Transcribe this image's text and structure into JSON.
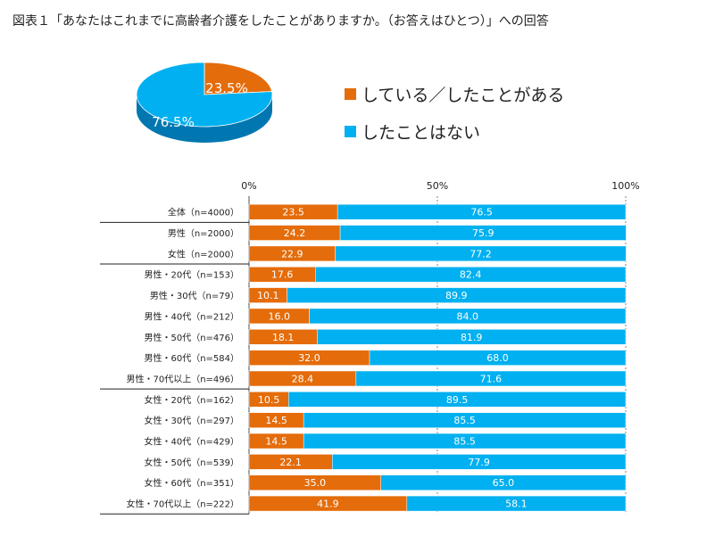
{
  "title": "図表１「あなたはこれまでに高齢者介護をしたことがありますか。（お答えはひとつ）」への回答",
  "colors": {
    "orange": "#E46C0A",
    "blue": "#00B0F0",
    "blue_dark": "#0077B0"
  },
  "chart_data": [
    {
      "type": "pie",
      "labels": [
        "している／したことがある",
        "したことはない"
      ],
      "values": [
        23.5,
        76.5
      ],
      "value_labels": [
        "23.5%",
        "76.5%"
      ],
      "legend": [
        {
          "label": "している／したことがある",
          "color": "#E46C0A"
        },
        {
          "label": "したことはない",
          "color": "#00B0F0"
        }
      ],
      "legend_position": "right"
    },
    {
      "type": "bar",
      "orientation": "horizontal-stacked-100",
      "x_ticks": [
        "0%",
        "50%",
        "100%"
      ],
      "xlim": [
        0,
        100
      ],
      "categories": [
        "全体（n=4000）",
        "男性（n=2000）",
        "女性（n=2000）",
        "男性・20代（n=153）",
        "男性・30代（n=79）",
        "男性・40代（n=212）",
        "男性・50代（n=476）",
        "男性・60代（n=584）",
        "男性・70代以上（n=496）",
        "女性・20代（n=162）",
        "女性・30代（n=297）",
        "女性・40代（n=429）",
        "女性・50代（n=539）",
        "女性・60代（n=351）",
        "女性・70代以上（n=222）"
      ],
      "group_breaks_after": [
        0,
        2,
        8
      ],
      "series": [
        {
          "name": "している／したことがある",
          "color": "#E46C0A",
          "values": [
            23.5,
            24.2,
            22.9,
            17.6,
            10.1,
            16.0,
            18.1,
            32.0,
            28.4,
            10.5,
            14.5,
            14.5,
            22.1,
            35.0,
            41.9
          ],
          "labels": [
            "23.5",
            "24.2",
            "22.9",
            "17.6",
            "10.1",
            "16.0",
            "18.1",
            "32.0",
            "28.4",
            "10.5",
            "14.5",
            "14.5",
            "22.1",
            "35.0",
            "41.9"
          ]
        },
        {
          "name": "したことはない",
          "color": "#00B0F0",
          "values": [
            76.5,
            75.9,
            77.2,
            82.4,
            89.9,
            84.0,
            81.9,
            68.0,
            71.6,
            89.5,
            85.5,
            85.5,
            77.9,
            65.0,
            58.1
          ],
          "labels": [
            "76.5",
            "75.9",
            "77.2",
            "82.4",
            "89.9",
            "84.0",
            "81.9",
            "68.0",
            "71.6",
            "89.5",
            "85.5",
            "85.5",
            "77.9",
            "65.0",
            "58.1"
          ]
        }
      ]
    }
  ]
}
